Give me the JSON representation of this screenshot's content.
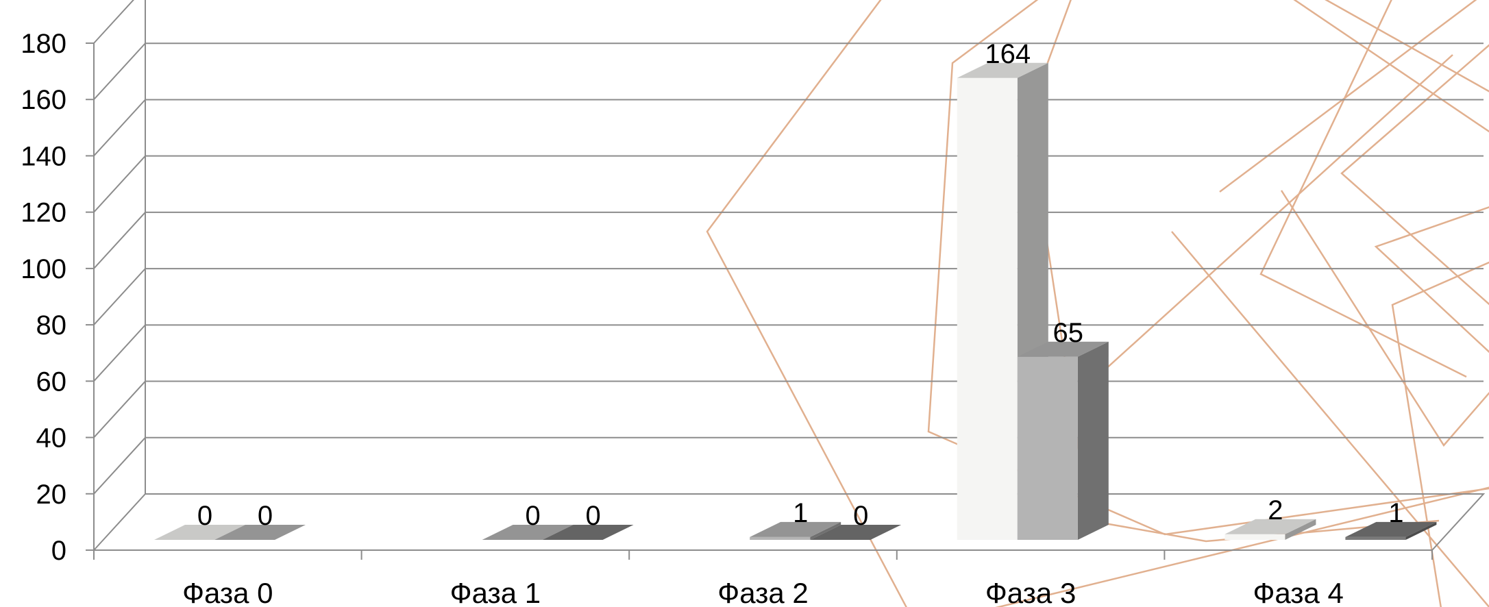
{
  "chart_data": {
    "type": "bar",
    "style": "3d-clustered-column",
    "categories": [
      "Фаза 0",
      "Фаза 1",
      "Фаза 2",
      "Фаза 3",
      "Фаза 4"
    ],
    "series": [
      {
        "values": [
          0,
          null,
          null,
          164,
          2
        ],
        "color": "#f5f5f3"
      },
      {
        "values": [
          0,
          0,
          1,
          65,
          null
        ],
        "color": "#b4b4b4"
      },
      {
        "values": [
          null,
          0,
          0,
          null,
          1
        ],
        "color": "#7a7a7a"
      }
    ],
    "y_ticks": [
      "0",
      "20",
      "40",
      "60",
      "80",
      "100",
      "120",
      "140",
      "160",
      "180"
    ],
    "ylim": [
      0,
      180
    ],
    "grid": true,
    "legend": "none",
    "decoration_color": "#e1b08f"
  }
}
